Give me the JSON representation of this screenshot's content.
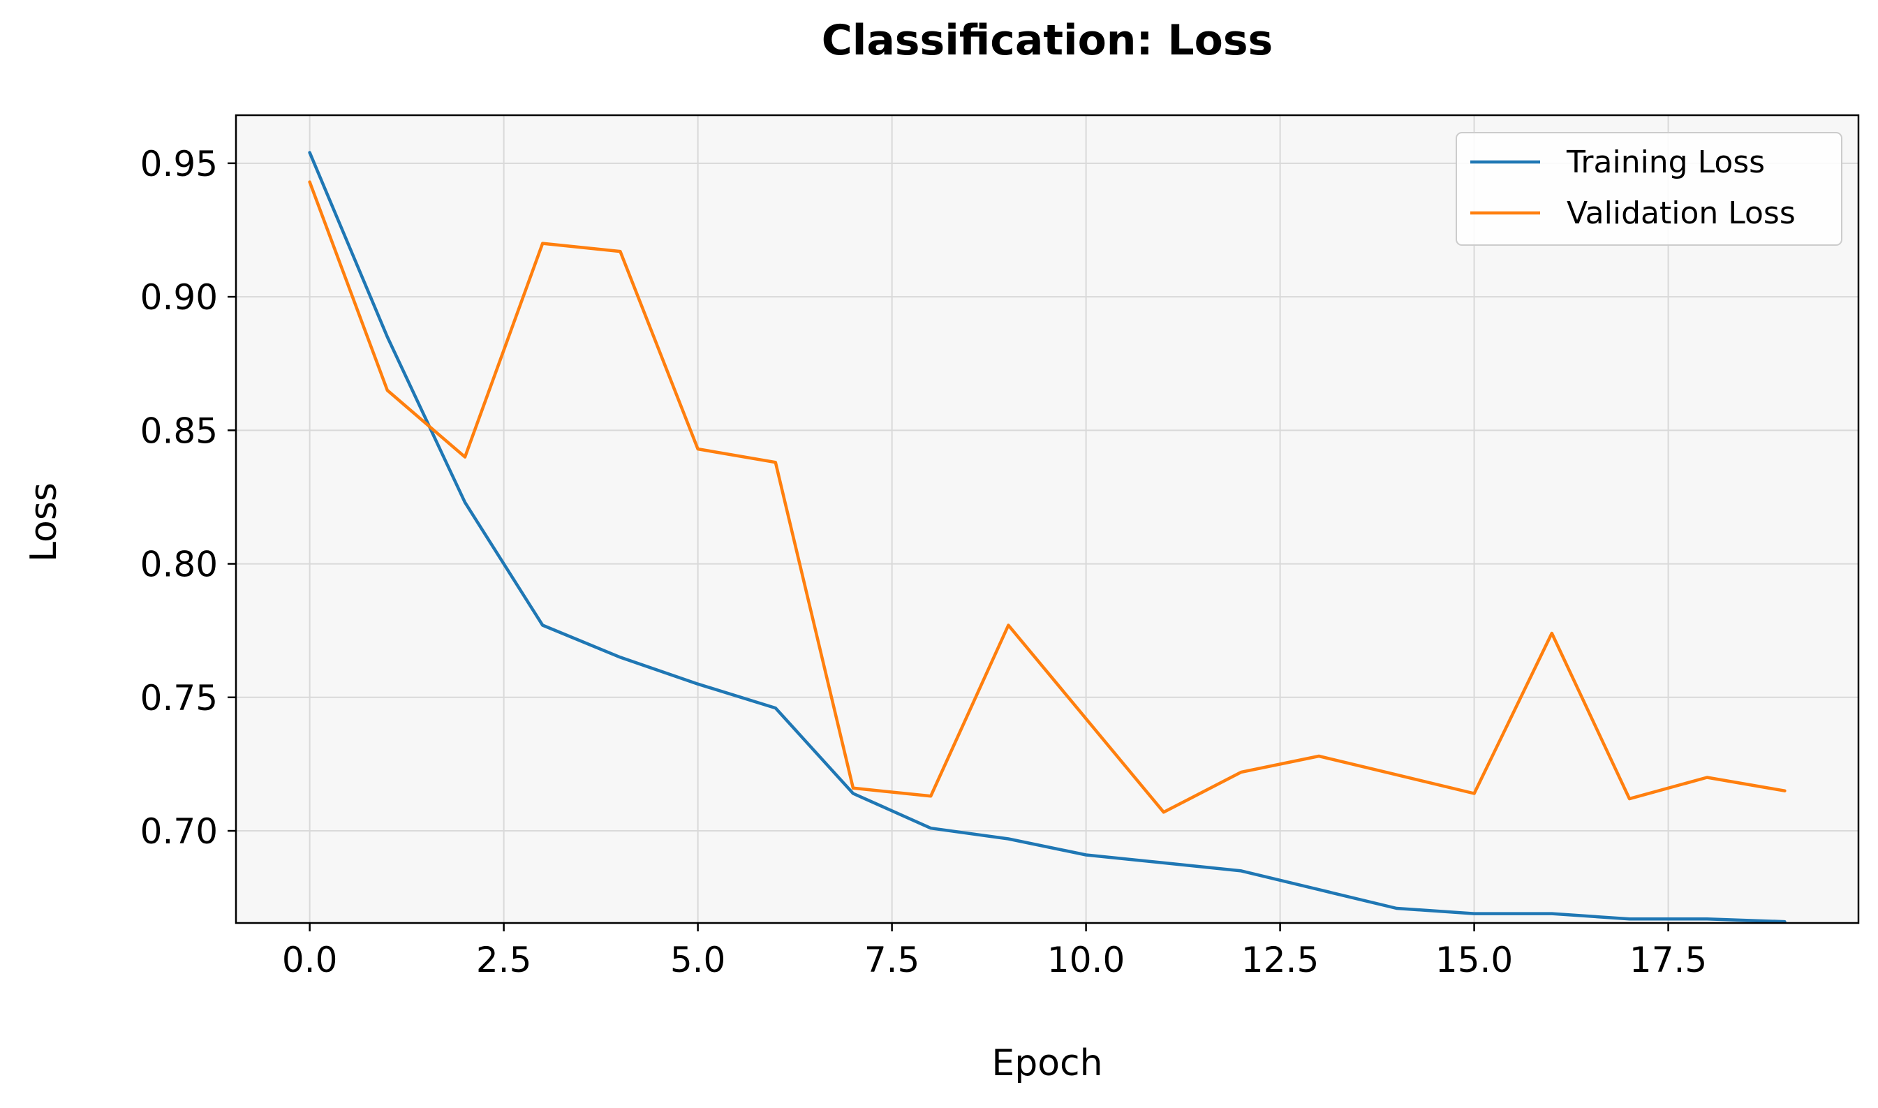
{
  "chart_data": {
    "type": "line",
    "title": "Classification: Loss",
    "xlabel": "Epoch",
    "ylabel": "Loss",
    "x": [
      0,
      1,
      2,
      3,
      4,
      5,
      6,
      7,
      8,
      9,
      10,
      11,
      12,
      13,
      14,
      15,
      16,
      17,
      18,
      19
    ],
    "xlim": [
      -0.95,
      19.95
    ],
    "ylim": [
      0.6655,
      0.968
    ],
    "x_ticks": [
      0.0,
      2.5,
      5.0,
      7.5,
      10.0,
      12.5,
      15.0,
      17.5
    ],
    "x_tick_labels": [
      "0.0",
      "2.5",
      "5.0",
      "7.5",
      "10.0",
      "12.5",
      "15.0",
      "17.5"
    ],
    "y_ticks": [
      0.7,
      0.75,
      0.8,
      0.85,
      0.9,
      0.95
    ],
    "y_tick_labels": [
      "0.70",
      "0.75",
      "0.80",
      "0.85",
      "0.90",
      "0.95"
    ],
    "grid": true,
    "legend_position": "top-right",
    "plot_background": "#f7f7f7",
    "grid_color": "#d9d9d9",
    "series": [
      {
        "name": "Training Loss",
        "color": "#1f77b4",
        "values": [
          0.954,
          0.885,
          0.823,
          0.777,
          0.765,
          0.755,
          0.746,
          0.714,
          0.701,
          0.697,
          0.691,
          0.688,
          0.685,
          0.678,
          0.671,
          0.669,
          0.669,
          0.667,
          0.667,
          0.666
        ]
      },
      {
        "name": "Validation Loss",
        "color": "#ff7f0e",
        "values": [
          0.943,
          0.865,
          0.84,
          0.92,
          0.917,
          0.843,
          0.838,
          0.716,
          0.713,
          0.777,
          0.742,
          0.707,
          0.722,
          0.728,
          0.721,
          0.714,
          0.774,
          0.712,
          0.72,
          0.715
        ]
      }
    ]
  }
}
